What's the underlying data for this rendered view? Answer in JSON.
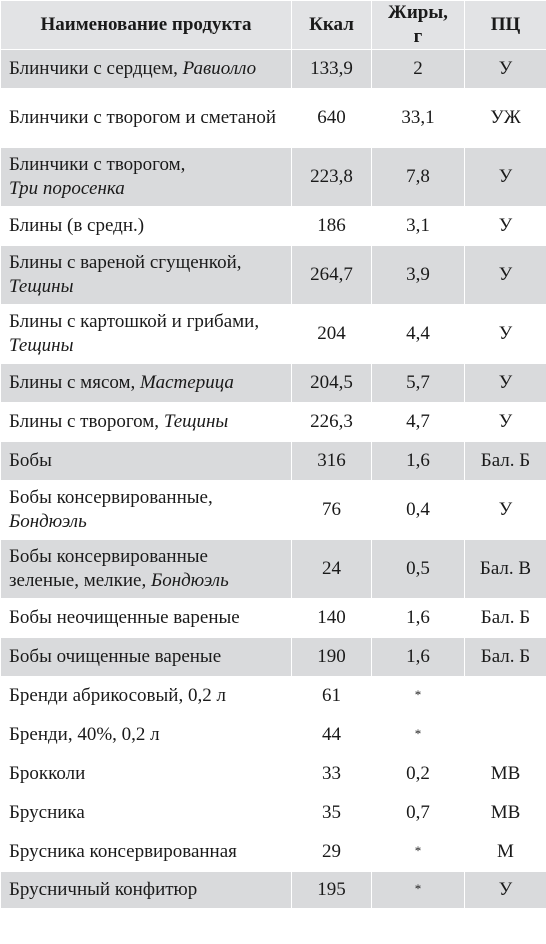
{
  "columns": [
    "Наименование продукта",
    "Ккал",
    "Жиры, г",
    "ПЦ"
  ],
  "rows": [
    {
      "name": "Блинчики с сердцем, ",
      "brand": "Равиолло",
      "kcal": "133,9",
      "fat": "2",
      "pc": "У"
    },
    {
      "name": "Блинчики с творогом и сметаной",
      "brand": "",
      "kcal": "640",
      "fat": "33,1",
      "pc": "УЖ"
    },
    {
      "name": "Блинчики с творогом, ",
      "brand": "Три поросенка",
      "kcal": "223,8",
      "fat": "7,8",
      "pc": "У"
    },
    {
      "name": "Блины (в средн.)",
      "brand": "",
      "kcal": "186",
      "fat": "3,1",
      "pc": "У"
    },
    {
      "name": "Блины с вареной сгущенкой, ",
      "brand": "Тещины",
      "kcal": "264,7",
      "fat": "3,9",
      "pc": "У"
    },
    {
      "name": "Блины с картошкой и грибами, ",
      "brand": "Тещины",
      "kcal": "204",
      "fat": "4,4",
      "pc": "У"
    },
    {
      "name": "Блины с мясом, ",
      "brand": "Мастерица",
      "kcal": "204,5",
      "fat": "5,7",
      "pc": "У"
    },
    {
      "name": "Блины с творогом, ",
      "brand": "Тещины",
      "kcal": "226,3",
      "fat": "4,7",
      "pc": "У"
    },
    {
      "name": "Бобы",
      "brand": "",
      "kcal": "316",
      "fat": "1,6",
      "pc": "Бал. Б"
    },
    {
      "name": "Бобы консервированные, ",
      "brand": "Бондюэль",
      "kcal": "76",
      "fat": "0,4",
      "pc": "У"
    },
    {
      "name": "Бобы консервированные зеленые, мелкие, ",
      "brand": "Бондюэль",
      "kcal": "24",
      "fat": "0,5",
      "pc": "Бал. В"
    },
    {
      "name": "Бобы неочищенные вареные",
      "brand": "",
      "kcal": "140",
      "fat": "1,6",
      "pc": "Бал. Б"
    },
    {
      "name": "Бобы очищенные вареные",
      "brand": "",
      "kcal": "190",
      "fat": "1,6",
      "pc": "Бал. Б"
    },
    {
      "name": "Бренди абрикосовый, 0,2 л",
      "brand": "",
      "kcal": "61",
      "fat": "*",
      "pc": ""
    },
    {
      "name": "Бренди, 40%, 0,2 л",
      "brand": "",
      "kcal": "44",
      "fat": "*",
      "pc": ""
    },
    {
      "name": "Брокколи",
      "brand": "",
      "kcal": "33",
      "fat": "0,2",
      "pc": "МВ"
    },
    {
      "name": "Брусника",
      "brand": "",
      "kcal": "35",
      "fat": "0,7",
      "pc": "МВ"
    },
    {
      "name": "Брусника консервированная",
      "brand": "",
      "kcal": "29",
      "fat": "*",
      "pc": "М"
    },
    {
      "name": "Брусничный конфитюр",
      "brand": "",
      "kcal": "195",
      "fat": "*",
      "pc": "У"
    }
  ]
}
